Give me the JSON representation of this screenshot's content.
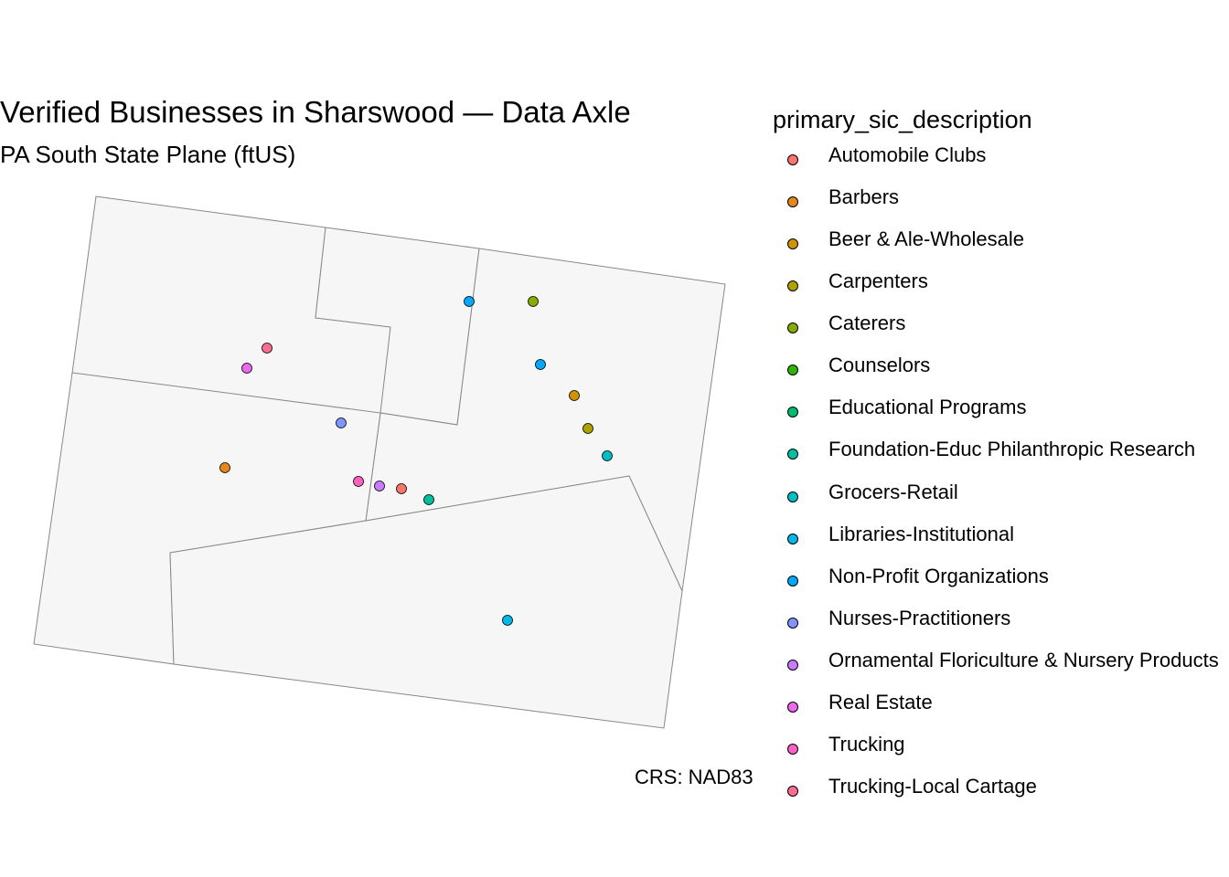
{
  "title": "Verified Businesses in Sharswood — Data Axle",
  "subtitle": "PA South State Plane (ftUS)",
  "caption": "CRS: NAD83",
  "legend": {
    "title": "primary_sic_description",
    "items": [
      {
        "label": "Automobile Clubs",
        "color": "#F8766D"
      },
      {
        "label": "Barbers",
        "color": "#E7861B"
      },
      {
        "label": "Beer & Ale-Wholesale",
        "color": "#D09400"
      },
      {
        "label": "Carpenters",
        "color": "#AFA100"
      },
      {
        "label": "Caterers",
        "color": "#85AD00"
      },
      {
        "label": "Counselors",
        "color": "#2DB600"
      },
      {
        "label": "Educational Programs",
        "color": "#00BC6F"
      },
      {
        "label": "Foundation-Educ Philanthropic Research",
        "color": "#00BF9E"
      },
      {
        "label": "Grocers-Retail",
        "color": "#00BFC4"
      },
      {
        "label": "Libraries-Institutional",
        "color": "#00B8E7"
      },
      {
        "label": "Non-Profit Organizations",
        "color": "#00A9FF"
      },
      {
        "label": "Nurses-Practitioners",
        "color": "#8494FF"
      },
      {
        "label": "Ornamental Floriculture & Nursery Products",
        "color": "#C77CFF"
      },
      {
        "label": "Real Estate",
        "color": "#ED68ED"
      },
      {
        "label": "Trucking",
        "color": "#FF61C3"
      },
      {
        "label": "Trucking-Local Cartage",
        "color": "#FF6C91"
      }
    ]
  },
  "map_style": {
    "polygon_fill": "#F6F6F6",
    "polygon_stroke": "#888888",
    "point_stroke": "#000000"
  }
}
